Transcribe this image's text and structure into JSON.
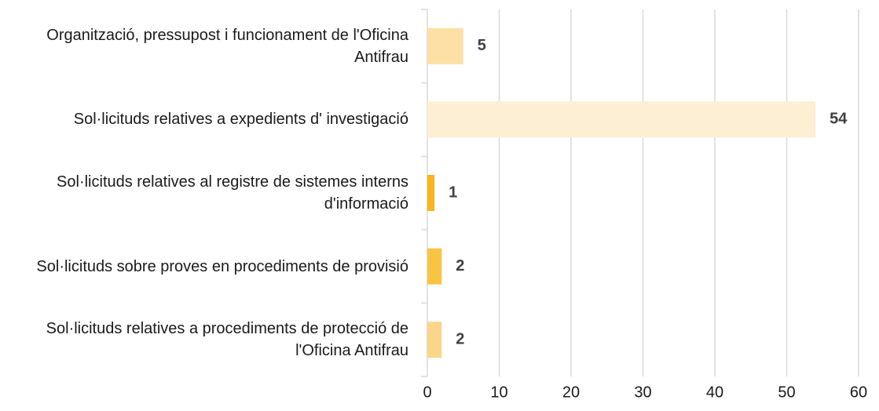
{
  "chart_data": {
    "type": "barh",
    "categories": [
      "Organització, pressupost i funcionament de l'Oficina Antifrau",
      "Sol·licituds relatives a expedients d' investigació",
      "Sol·licituds relatives al registre de sistemes interns d'informació",
      "Sol·licituds sobre proves en procediments de provisió",
      "Sol·licituds relatives a procediments de protecció de l'Oficina Antifrau"
    ],
    "values": [
      5,
      54,
      1,
      2,
      2
    ],
    "colors": [
      "#fde0a5",
      "#fdefd3",
      "#f7b51c",
      "#f9c443",
      "#fbd58a"
    ],
    "xlim": [
      0,
      60
    ],
    "xticks": [
      0,
      10,
      20,
      30,
      40,
      50,
      60
    ],
    "grid": true
  }
}
